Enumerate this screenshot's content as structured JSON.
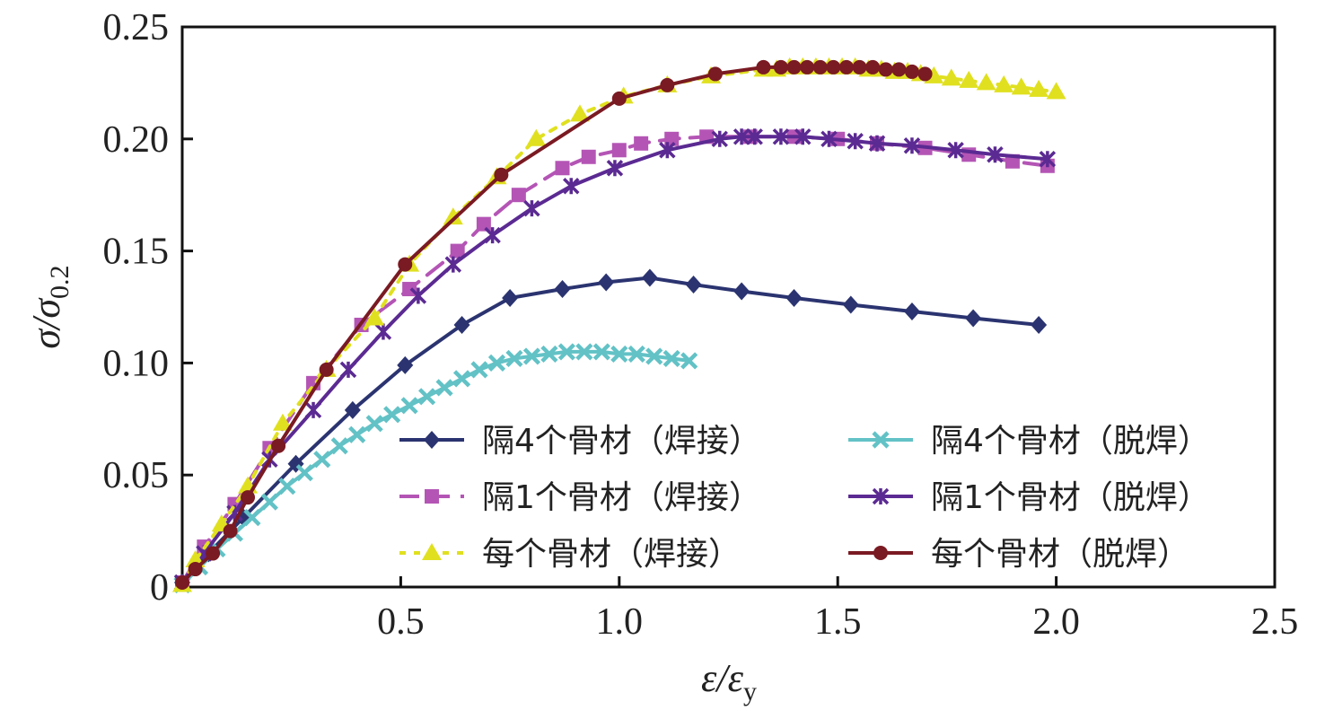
{
  "chart_data": {
    "type": "line",
    "title": "",
    "xlabel": {
      "main": "ε/ε",
      "sub": "y"
    },
    "ylabel": {
      "main": "σ/σ",
      "sub": "0.2"
    },
    "xlim": [
      0,
      2.5
    ],
    "ylim": [
      0,
      0.25
    ],
    "x_ticks": [
      {
        "v": 0.5,
        "label": "0.5"
      },
      {
        "v": 1.0,
        "label": "1.0"
      },
      {
        "v": 1.5,
        "label": "1.5"
      },
      {
        "v": 2.0,
        "label": "2.0"
      },
      {
        "v": 2.5,
        "label": "2.5"
      }
    ],
    "y_ticks": [
      {
        "v": 0,
        "label": "0"
      },
      {
        "v": 0.05,
        "label": "0.05"
      },
      {
        "v": 0.1,
        "label": "0.10"
      },
      {
        "v": 0.15,
        "label": "0.15"
      },
      {
        "v": 0.2,
        "label": "0.20"
      },
      {
        "v": 0.25,
        "label": "0.25"
      }
    ],
    "grid": false,
    "legend_position": "bottom-right",
    "series": [
      {
        "name": "隔4个骨材（焊接）",
        "color": "#2b3470",
        "marker": "diamond",
        "dash": "solid",
        "x": [
          0.0,
          0.06,
          0.14,
          0.26,
          0.39,
          0.51,
          0.64,
          0.75,
          0.87,
          0.97,
          1.07,
          1.17,
          1.28,
          1.4,
          1.53,
          1.67,
          1.81,
          1.96
        ],
        "y": [
          0.002,
          0.015,
          0.031,
          0.055,
          0.079,
          0.099,
          0.117,
          0.129,
          0.133,
          0.136,
          0.138,
          0.135,
          0.132,
          0.129,
          0.126,
          0.123,
          0.12,
          0.117
        ]
      },
      {
        "name": "隔4个骨材（脱焊）",
        "color": "#62c2c6",
        "marker": "x",
        "dash": "solid",
        "x": [
          0.0,
          0.04,
          0.08,
          0.12,
          0.16,
          0.2,
          0.24,
          0.28,
          0.32,
          0.36,
          0.4,
          0.44,
          0.48,
          0.52,
          0.56,
          0.6,
          0.64,
          0.68,
          0.72,
          0.76,
          0.8,
          0.84,
          0.88,
          0.92,
          0.96,
          1.0,
          1.04,
          1.08,
          1.12,
          1.16
        ],
        "y": [
          0.001,
          0.009,
          0.017,
          0.024,
          0.031,
          0.038,
          0.045,
          0.051,
          0.057,
          0.063,
          0.068,
          0.073,
          0.077,
          0.081,
          0.085,
          0.089,
          0.093,
          0.097,
          0.1,
          0.102,
          0.103,
          0.104,
          0.105,
          0.105,
          0.105,
          0.104,
          0.104,
          0.103,
          0.102,
          0.101
        ]
      },
      {
        "name": "隔1个骨材（焊接）",
        "color": "#b455b5",
        "marker": "square",
        "dash": "dashed",
        "x": [
          0.0,
          0.05,
          0.12,
          0.2,
          0.3,
          0.41,
          0.52,
          0.63,
          0.69,
          0.77,
          0.87,
          0.93,
          1.0,
          1.05,
          1.12,
          1.2,
          1.3,
          1.4,
          1.5,
          1.59,
          1.7,
          1.8,
          1.9,
          1.98
        ],
        "y": [
          0.002,
          0.018,
          0.037,
          0.062,
          0.091,
          0.117,
          0.133,
          0.15,
          0.162,
          0.175,
          0.187,
          0.192,
          0.195,
          0.198,
          0.2,
          0.201,
          0.201,
          0.201,
          0.2,
          0.198,
          0.196,
          0.193,
          0.19,
          0.188
        ]
      },
      {
        "name": "隔1个骨材（脱焊）",
        "color": "#5b2a92",
        "marker": "asterisk",
        "dash": "solid",
        "x": [
          0.0,
          0.05,
          0.12,
          0.2,
          0.3,
          0.38,
          0.46,
          0.54,
          0.62,
          0.71,
          0.8,
          0.89,
          0.99,
          1.11,
          1.23,
          1.28,
          1.31,
          1.37,
          1.42,
          1.48,
          1.54,
          1.59,
          1.67,
          1.77,
          1.86,
          1.98
        ],
        "y": [
          0.002,
          0.015,
          0.033,
          0.057,
          0.079,
          0.097,
          0.114,
          0.13,
          0.144,
          0.157,
          0.169,
          0.179,
          0.187,
          0.195,
          0.2,
          0.201,
          0.201,
          0.201,
          0.201,
          0.2,
          0.199,
          0.198,
          0.197,
          0.195,
          0.193,
          0.191
        ]
      },
      {
        "name": "每个骨材（焊接）",
        "color": "#e0e020",
        "marker": "triangle",
        "dash": "dotted",
        "x": [
          0.0,
          0.03,
          0.09,
          0.15,
          0.23,
          0.33,
          0.44,
          0.52,
          0.62,
          0.72,
          0.81,
          0.91,
          1.01,
          1.11,
          1.21,
          1.33,
          1.36,
          1.39,
          1.42,
          1.45,
          1.48,
          1.51,
          1.54,
          1.57,
          1.6,
          1.63,
          1.66,
          1.69,
          1.72,
          1.76,
          1.8,
          1.84,
          1.88,
          1.92,
          1.96,
          2.0
        ],
        "y": [
          0.001,
          0.012,
          0.028,
          0.045,
          0.073,
          0.097,
          0.12,
          0.144,
          0.165,
          0.183,
          0.2,
          0.211,
          0.219,
          0.224,
          0.228,
          0.231,
          0.231,
          0.232,
          0.232,
          0.232,
          0.232,
          0.232,
          0.232,
          0.231,
          0.231,
          0.23,
          0.23,
          0.229,
          0.228,
          0.227,
          0.226,
          0.225,
          0.224,
          0.223,
          0.222,
          0.221
        ]
      },
      {
        "name": "每个骨材（脱焊）",
        "color": "#7a1a22",
        "marker": "circle",
        "dash": "solid",
        "x": [
          0.0,
          0.03,
          0.07,
          0.11,
          0.15,
          0.22,
          0.33,
          0.51,
          0.73,
          1.0,
          1.11,
          1.22,
          1.33,
          1.37,
          1.4,
          1.43,
          1.46,
          1.49,
          1.52,
          1.55,
          1.58,
          1.61,
          1.64,
          1.67,
          1.7
        ],
        "y": [
          0.002,
          0.008,
          0.015,
          0.025,
          0.04,
          0.063,
          0.097,
          0.144,
          0.184,
          0.218,
          0.224,
          0.229,
          0.232,
          0.232,
          0.232,
          0.232,
          0.232,
          0.232,
          0.232,
          0.232,
          0.232,
          0.231,
          0.231,
          0.23,
          0.229
        ]
      }
    ]
  }
}
